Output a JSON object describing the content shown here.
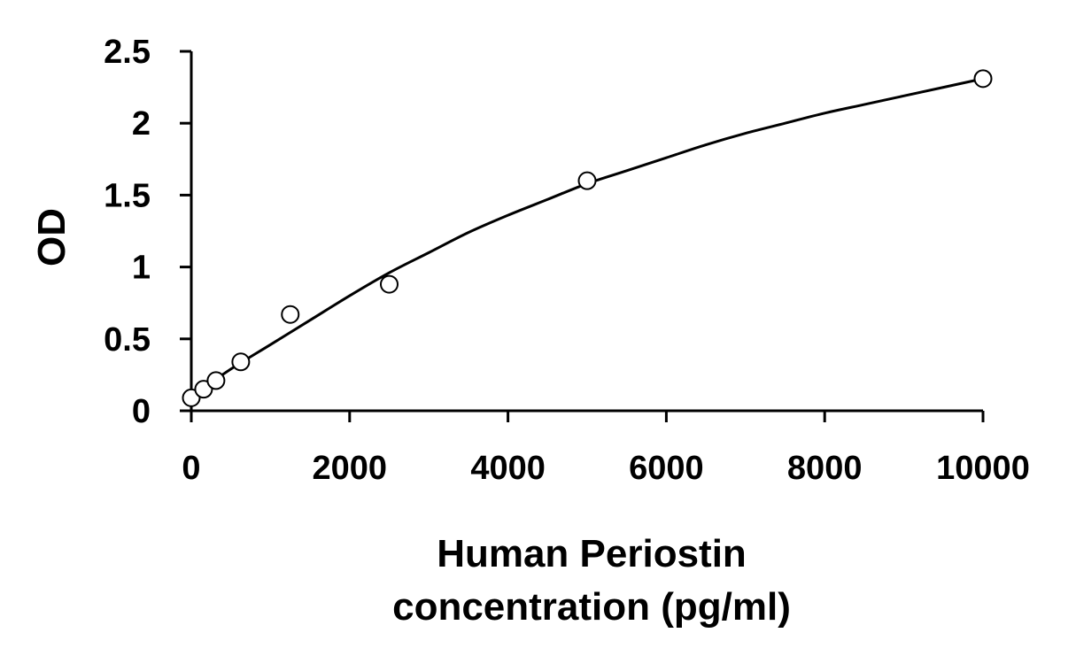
{
  "chart_data": {
    "type": "scatter",
    "title": "",
    "ylabel": "OD",
    "xlabel_lines": [
      "Human Periostin",
      "concentration (pg/ml)"
    ],
    "xlim": [
      0,
      10000
    ],
    "ylim": [
      0,
      2.5
    ],
    "x_ticks": [
      0,
      2000,
      4000,
      6000,
      8000,
      10000
    ],
    "x_tick_labels": [
      "0",
      "2000",
      "4000",
      "6000",
      "8000",
      "10000"
    ],
    "y_ticks": [
      0,
      0.5,
      1,
      1.5,
      2,
      2.5
    ],
    "y_tick_labels": [
      "0",
      "0.5",
      "1",
      "1.5",
      "2",
      "2.5"
    ],
    "grid": false,
    "legend": "none",
    "series": [
      {
        "marker": "open-circle",
        "x": [
          0,
          156,
          312,
          625,
          1250,
          2500,
          5000,
          10000
        ],
        "y": [
          0.09,
          0.15,
          0.21,
          0.34,
          0.67,
          0.88,
          1.6,
          2.31
        ]
      }
    ],
    "fit_curve": {
      "x": [
        0,
        500,
        1000,
        1500,
        2000,
        2500,
        3000,
        3500,
        4000,
        4500,
        5000,
        5500,
        6000,
        6500,
        7000,
        7500,
        8000,
        8500,
        9000,
        9500,
        10000
      ],
      "y": [
        0.1,
        0.29,
        0.46,
        0.63,
        0.8,
        0.96,
        1.1,
        1.24,
        1.36,
        1.47,
        1.58,
        1.67,
        1.76,
        1.85,
        1.93,
        2.0,
        2.07,
        2.13,
        2.19,
        2.25,
        2.31
      ]
    },
    "colors": {
      "axis": "#000000",
      "marker": "#000000",
      "curve": "#000000"
    }
  }
}
